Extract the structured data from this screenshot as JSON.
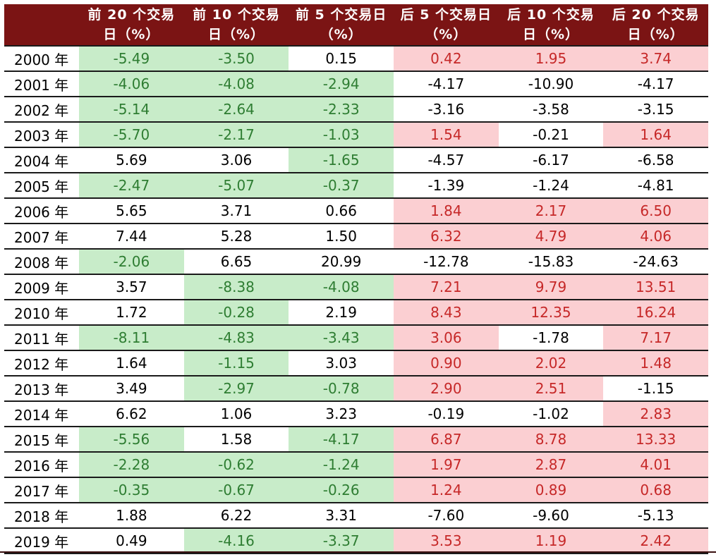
{
  "table": {
    "headers": [
      "",
      "前 20 个交易日（%）",
      "前 10 个交易日（%）",
      "前 5 个交易日（%）",
      "后 5 个交易日（%）",
      "后 10 个交易日（%）",
      "后 20 个交易日（%）"
    ],
    "colors": {
      "header_bg": "#7b1414",
      "negative_bg": "#c8ecc9",
      "negative_text": "#2e7d32",
      "positive_bg": "#fbcfd2",
      "positive_text": "#c62828"
    },
    "rows": [
      {
        "year": "2000 年",
        "cells": [
          {
            "v": "-5.49",
            "s": "neg"
          },
          {
            "v": "-3.50",
            "s": "neg"
          },
          {
            "v": "0.15",
            "s": ""
          },
          {
            "v": "0.42",
            "s": "pos"
          },
          {
            "v": "1.95",
            "s": "pos"
          },
          {
            "v": "3.74",
            "s": "pos"
          }
        ]
      },
      {
        "year": "2001 年",
        "cells": [
          {
            "v": "-4.06",
            "s": "neg"
          },
          {
            "v": "-4.08",
            "s": "neg"
          },
          {
            "v": "-2.94",
            "s": "neg"
          },
          {
            "v": "-4.17",
            "s": ""
          },
          {
            "v": "-10.90",
            "s": ""
          },
          {
            "v": "-4.17",
            "s": ""
          }
        ]
      },
      {
        "year": "2002 年",
        "cells": [
          {
            "v": "-5.14",
            "s": "neg"
          },
          {
            "v": "-2.64",
            "s": "neg"
          },
          {
            "v": "-2.33",
            "s": "neg"
          },
          {
            "v": "-3.16",
            "s": ""
          },
          {
            "v": "-3.58",
            "s": ""
          },
          {
            "v": "-3.15",
            "s": ""
          }
        ]
      },
      {
        "year": "2003 年",
        "cells": [
          {
            "v": "-5.70",
            "s": "neg"
          },
          {
            "v": "-2.17",
            "s": "neg"
          },
          {
            "v": "-1.03",
            "s": "neg"
          },
          {
            "v": "1.54",
            "s": "pos"
          },
          {
            "v": "-0.21",
            "s": ""
          },
          {
            "v": "1.64",
            "s": "pos"
          }
        ]
      },
      {
        "year": "2004 年",
        "cells": [
          {
            "v": "5.69",
            "s": ""
          },
          {
            "v": "3.06",
            "s": ""
          },
          {
            "v": "-1.65",
            "s": "neg"
          },
          {
            "v": "-4.57",
            "s": ""
          },
          {
            "v": "-6.17",
            "s": ""
          },
          {
            "v": "-6.58",
            "s": ""
          }
        ]
      },
      {
        "year": "2005 年",
        "cells": [
          {
            "v": "-2.47",
            "s": "neg"
          },
          {
            "v": "-5.07",
            "s": "neg"
          },
          {
            "v": "-0.37",
            "s": "neg"
          },
          {
            "v": "-1.39",
            "s": ""
          },
          {
            "v": "-1.24",
            "s": ""
          },
          {
            "v": "-4.81",
            "s": ""
          }
        ]
      },
      {
        "year": "2006 年",
        "cells": [
          {
            "v": "5.65",
            "s": ""
          },
          {
            "v": "3.71",
            "s": ""
          },
          {
            "v": "0.66",
            "s": ""
          },
          {
            "v": "1.84",
            "s": "pos"
          },
          {
            "v": "2.17",
            "s": "pos"
          },
          {
            "v": "6.50",
            "s": "pos"
          }
        ]
      },
      {
        "year": "2007 年",
        "cells": [
          {
            "v": "7.44",
            "s": ""
          },
          {
            "v": "5.28",
            "s": ""
          },
          {
            "v": "1.50",
            "s": ""
          },
          {
            "v": "6.32",
            "s": "pos"
          },
          {
            "v": "4.79",
            "s": "pos"
          },
          {
            "v": "4.06",
            "s": "pos"
          }
        ]
      },
      {
        "year": "2008 年",
        "cells": [
          {
            "v": "-2.06",
            "s": "neg"
          },
          {
            "v": "6.65",
            "s": ""
          },
          {
            "v": "20.99",
            "s": ""
          },
          {
            "v": "-12.78",
            "s": ""
          },
          {
            "v": "-15.83",
            "s": ""
          },
          {
            "v": "-24.63",
            "s": ""
          }
        ]
      },
      {
        "year": "2009 年",
        "cells": [
          {
            "v": "3.57",
            "s": ""
          },
          {
            "v": "-8.38",
            "s": "neg"
          },
          {
            "v": "-4.08",
            "s": "neg"
          },
          {
            "v": "7.21",
            "s": "pos"
          },
          {
            "v": "9.79",
            "s": "pos"
          },
          {
            "v": "13.51",
            "s": "pos"
          }
        ]
      },
      {
        "year": "2010 年",
        "cells": [
          {
            "v": "1.72",
            "s": ""
          },
          {
            "v": "-0.28",
            "s": "neg"
          },
          {
            "v": "2.19",
            "s": ""
          },
          {
            "v": "8.43",
            "s": "pos"
          },
          {
            "v": "12.35",
            "s": "pos"
          },
          {
            "v": "16.24",
            "s": "pos"
          }
        ]
      },
      {
        "year": "2011 年",
        "cells": [
          {
            "v": "-8.11",
            "s": "neg"
          },
          {
            "v": "-4.83",
            "s": "neg"
          },
          {
            "v": "-3.43",
            "s": "neg"
          },
          {
            "v": "3.06",
            "s": "pos"
          },
          {
            "v": "-1.78",
            "s": ""
          },
          {
            "v": "7.17",
            "s": "pos"
          }
        ]
      },
      {
        "year": "2012 年",
        "cells": [
          {
            "v": "1.64",
            "s": ""
          },
          {
            "v": "-1.15",
            "s": "neg"
          },
          {
            "v": "3.03",
            "s": ""
          },
          {
            "v": "0.90",
            "s": "pos"
          },
          {
            "v": "2.02",
            "s": "pos"
          },
          {
            "v": "1.48",
            "s": "pos"
          }
        ]
      },
      {
        "year": "2013 年",
        "cells": [
          {
            "v": "3.49",
            "s": ""
          },
          {
            "v": "-2.97",
            "s": "neg"
          },
          {
            "v": "-0.78",
            "s": "neg"
          },
          {
            "v": "2.90",
            "s": "pos"
          },
          {
            "v": "2.51",
            "s": "pos"
          },
          {
            "v": "-1.15",
            "s": ""
          }
        ]
      },
      {
        "year": "2014 年",
        "cells": [
          {
            "v": "6.62",
            "s": ""
          },
          {
            "v": "1.06",
            "s": ""
          },
          {
            "v": "3.23",
            "s": ""
          },
          {
            "v": "-0.19",
            "s": ""
          },
          {
            "v": "-1.02",
            "s": ""
          },
          {
            "v": "2.83",
            "s": "pos"
          }
        ]
      },
      {
        "year": "2015 年",
        "cells": [
          {
            "v": "-5.56",
            "s": "neg"
          },
          {
            "v": "1.58",
            "s": ""
          },
          {
            "v": "-4.17",
            "s": "neg"
          },
          {
            "v": "6.87",
            "s": "pos"
          },
          {
            "v": "8.78",
            "s": "pos"
          },
          {
            "v": "13.33",
            "s": "pos"
          }
        ]
      },
      {
        "year": "2016 年",
        "cells": [
          {
            "v": "-2.28",
            "s": "neg"
          },
          {
            "v": "-0.62",
            "s": "neg"
          },
          {
            "v": "-1.24",
            "s": "neg"
          },
          {
            "v": "1.97",
            "s": "pos"
          },
          {
            "v": "2.87",
            "s": "pos"
          },
          {
            "v": "4.01",
            "s": "pos"
          }
        ]
      },
      {
        "year": "2017 年",
        "cells": [
          {
            "v": "-0.35",
            "s": "neg"
          },
          {
            "v": "-0.67",
            "s": "neg"
          },
          {
            "v": "-0.26",
            "s": "neg"
          },
          {
            "v": "1.24",
            "s": "pos"
          },
          {
            "v": "0.89",
            "s": "pos"
          },
          {
            "v": "0.68",
            "s": "pos"
          }
        ]
      },
      {
        "year": "2018 年",
        "cells": [
          {
            "v": "1.88",
            "s": ""
          },
          {
            "v": "6.22",
            "s": ""
          },
          {
            "v": "3.31",
            "s": ""
          },
          {
            "v": "-7.60",
            "s": ""
          },
          {
            "v": "-9.60",
            "s": ""
          },
          {
            "v": "-5.13",
            "s": ""
          }
        ]
      },
      {
        "year": "2019 年",
        "cells": [
          {
            "v": "0.49",
            "s": ""
          },
          {
            "v": "-4.16",
            "s": "neg"
          },
          {
            "v": "-3.37",
            "s": "neg"
          },
          {
            "v": "3.53",
            "s": "pos"
          },
          {
            "v": "1.19",
            "s": "pos"
          },
          {
            "v": "2.42",
            "s": "pos"
          }
        ]
      }
    ]
  }
}
